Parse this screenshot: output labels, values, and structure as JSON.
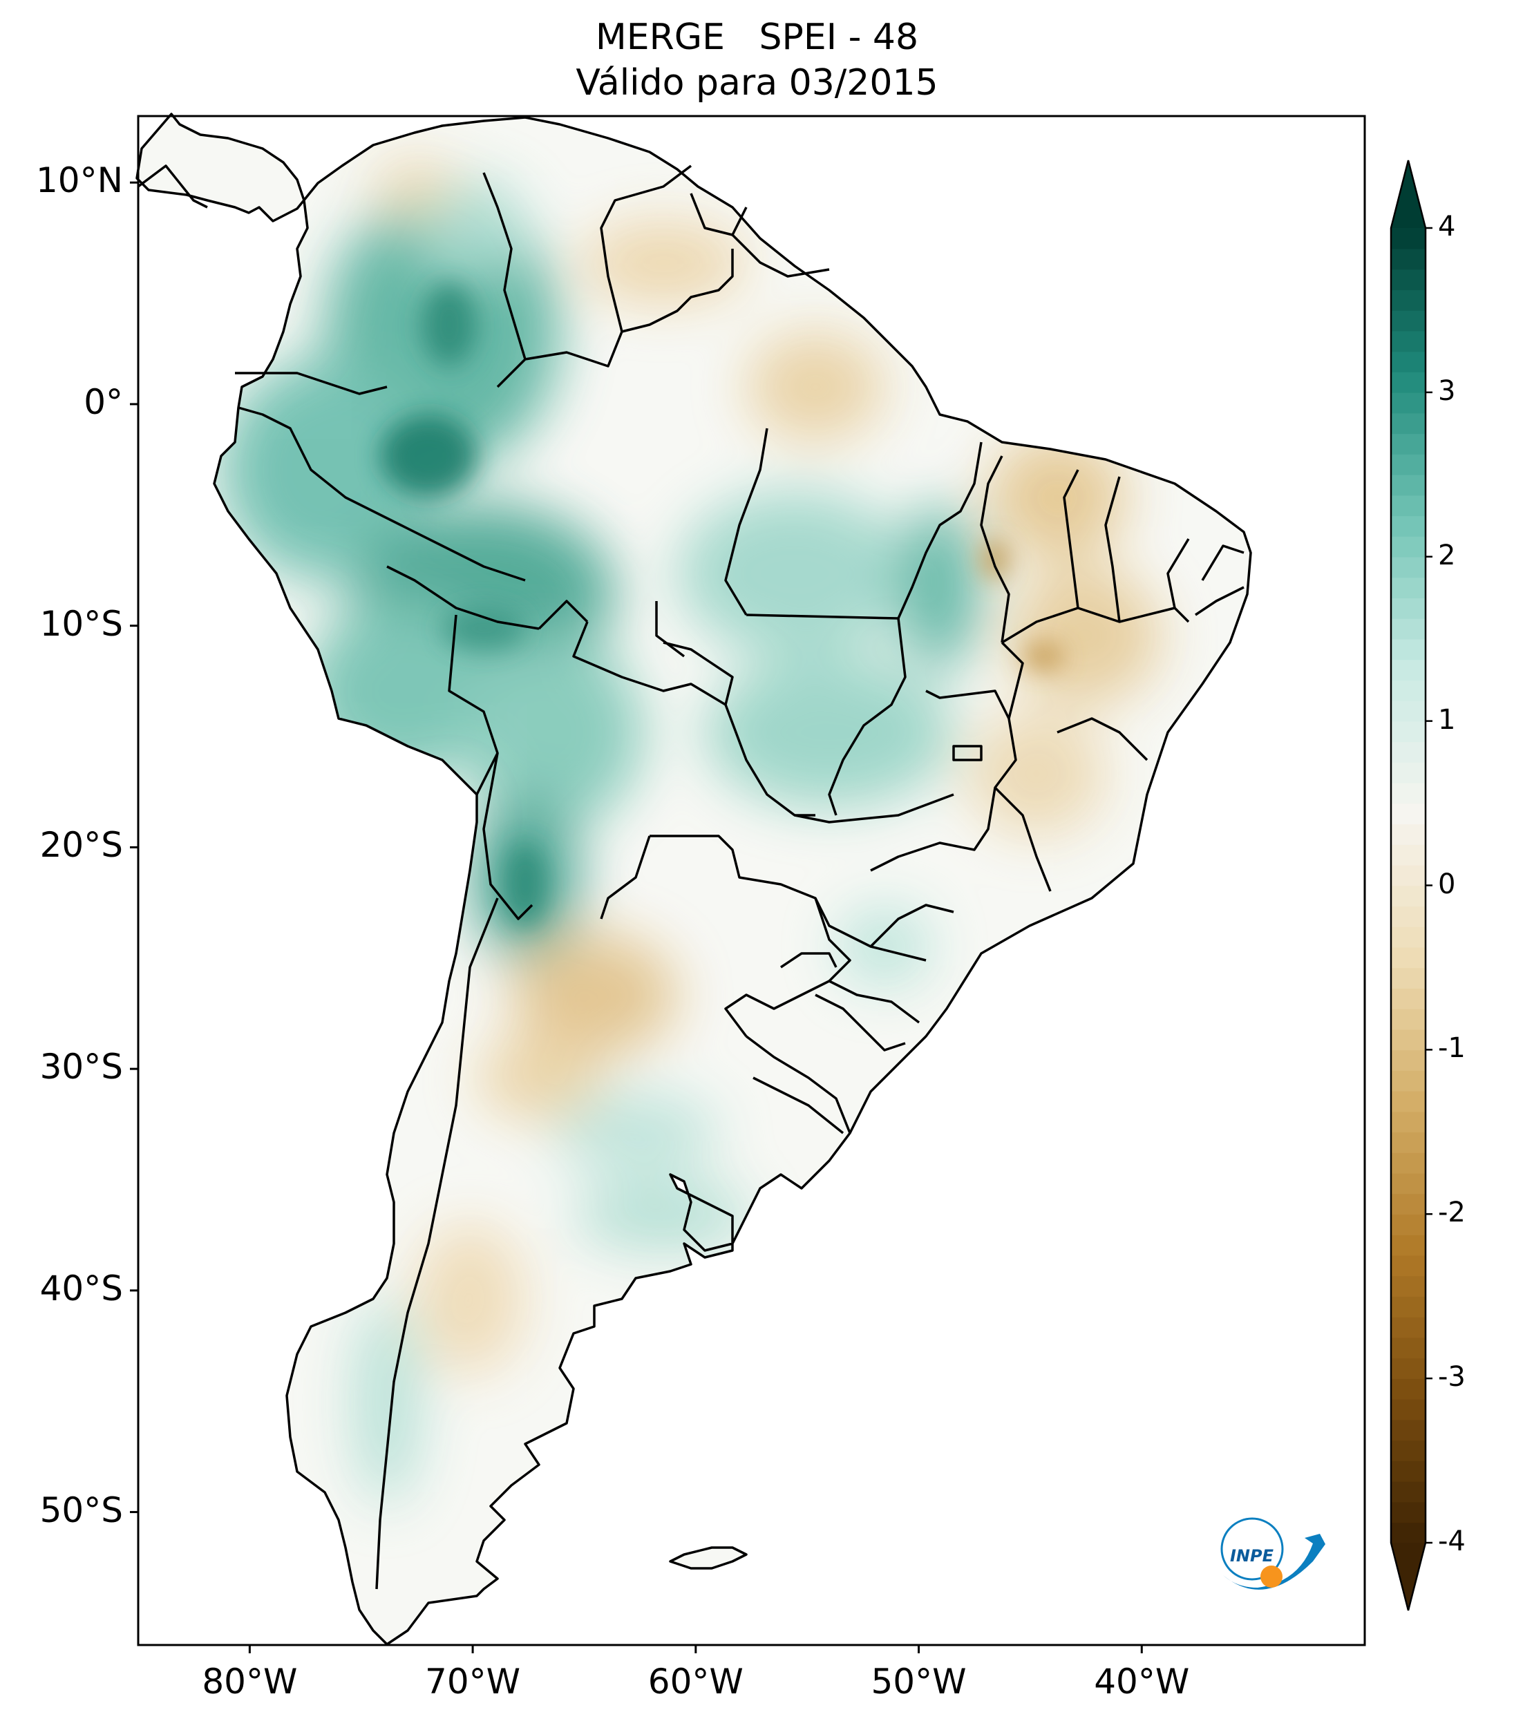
{
  "title": {
    "line1": "MERGE   SPEI - 48",
    "line2": "Válido para 03/2015"
  },
  "map": {
    "region": "South America",
    "projection": "PlateCarree",
    "lon_range": [
      -85,
      -30
    ],
    "lat_range": [
      -56,
      13
    ],
    "lat_ticks": [
      {
        "value": 10,
        "label": "10°N"
      },
      {
        "value": 0,
        "label": "0°"
      },
      {
        "value": -10,
        "label": "10°S"
      },
      {
        "value": -20,
        "label": "20°S"
      },
      {
        "value": -30,
        "label": "30°S"
      },
      {
        "value": -40,
        "label": "40°S"
      },
      {
        "value": -50,
        "label": "50°S"
      }
    ],
    "lon_ticks": [
      {
        "value": -80,
        "label": "80°W"
      },
      {
        "value": -70,
        "label": "70°W"
      },
      {
        "value": -60,
        "label": "60°W"
      },
      {
        "value": -50,
        "label": "50°W"
      },
      {
        "value": -40,
        "label": "40°W"
      }
    ]
  },
  "colorbar": {
    "min": -4,
    "max": 4,
    "extend": "both",
    "ticks": [
      {
        "value": 4,
        "label": "4"
      },
      {
        "value": 3,
        "label": "3"
      },
      {
        "value": 2,
        "label": "2"
      },
      {
        "value": 1,
        "label": "1"
      },
      {
        "value": 0,
        "label": "0"
      },
      {
        "value": -1,
        "label": "-1"
      },
      {
        "value": -2,
        "label": "-2"
      },
      {
        "value": -3,
        "label": "-3"
      },
      {
        "value": -4,
        "label": "-4"
      }
    ],
    "colors": [
      "#3d2304",
      "#7a4d0f",
      "#b07a28",
      "#d3ad66",
      "#eedcb5",
      "#f6f5f0",
      "#c8eae3",
      "#72c4b5",
      "#1f8a7b",
      "#003d33"
    ]
  },
  "logo": {
    "text": "INPE",
    "colors": {
      "swoosh": "#0b7fc0",
      "sun": "#f7941d",
      "text": "#0b5c9c"
    }
  },
  "spei_field": {
    "wet_areas": [
      "northwest Amazon",
      "Colombia",
      "Ecuador",
      "Peru",
      "Bolivia",
      "western Mato Grosso",
      "southern Chile",
      "central Argentina"
    ],
    "dry_areas": [
      "Northeast Brazil",
      "Minas Gerais",
      "eastern Amazon",
      "Venezuela",
      "Guyana",
      "Paraguay",
      "northern Argentina"
    ]
  }
}
